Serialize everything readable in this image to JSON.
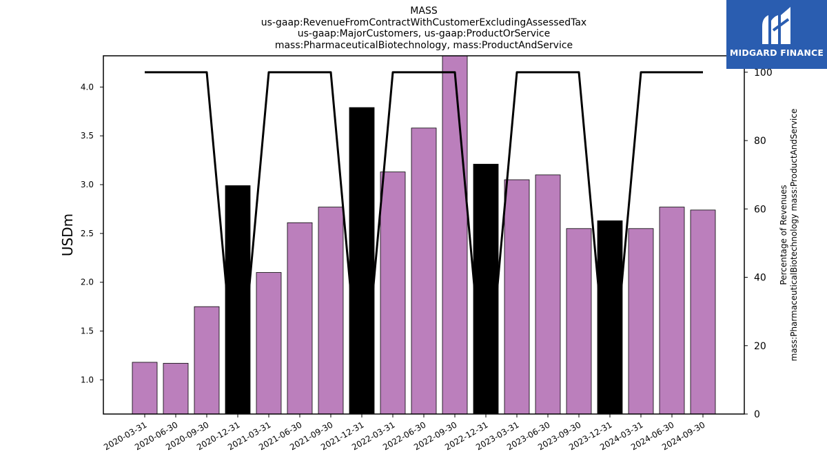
{
  "chart_data": {
    "type": "bar",
    "title_lines": [
      "MASS",
      "us-gaap:RevenueFromContractWithCustomerExcludingAssessedTax",
      "us-gaap:MajorCustomers, us-gaap:ProductOrService",
      "mass:PharmaceuticalBiotechnology, mass:ProductAndService"
    ],
    "ylabel": "USDm",
    "ylabel_right": [
      "Percentage of Revenues",
      "mass:PharmaceuticalBiotechnology mass:ProductAndService"
    ],
    "categories": [
      "2020-03-31",
      "2020-06-30",
      "2020-09-30",
      "2020-12-31",
      "2021-03-31",
      "2021-06-30",
      "2021-09-30",
      "2021-12-31",
      "2022-03-31",
      "2022-06-30",
      "2022-09-30",
      "2022-12-31",
      "2023-03-31",
      "2023-06-30",
      "2023-09-30",
      "2023-12-31",
      "2024-03-31",
      "2024-06-30",
      "2024-09-30"
    ],
    "series": [
      {
        "axis": "left",
        "type": "bar",
        "values": [
          1.18,
          1.17,
          1.75,
          2.99,
          2.1,
          2.61,
          2.77,
          3.79,
          3.13,
          3.58,
          4.33,
          3.21,
          3.05,
          3.1,
          2.55,
          2.63,
          2.55,
          2.77,
          2.74
        ],
        "colors": [
          "#bb7fbc",
          "#bb7fbc",
          "#bb7fbc",
          "#000000",
          "#bb7fbc",
          "#bb7fbc",
          "#bb7fbc",
          "#000000",
          "#bb7fbc",
          "#bb7fbc",
          "#bb7fbc",
          "#000000",
          "#bb7fbc",
          "#bb7fbc",
          "#bb7fbc",
          "#000000",
          "#bb7fbc",
          "#bb7fbc",
          "#bb7fbc"
        ]
      },
      {
        "axis": "right",
        "type": "line",
        "color": "#000000",
        "values": [
          100,
          100,
          100,
          null,
          100,
          100,
          100,
          null,
          100,
          100,
          100,
          null,
          100,
          100,
          100,
          null,
          100,
          100,
          100
        ]
      }
    ],
    "ylim": [
      0.65,
      4.32
    ],
    "yticks": [
      1.0,
      1.5,
      2.0,
      2.5,
      3.0,
      3.5,
      4.0
    ],
    "ylim_right": [
      0,
      104.8
    ],
    "yticks_right": [
      0,
      20,
      40,
      60,
      80,
      100
    ],
    "grid": false,
    "legend": "none"
  },
  "logo": {
    "text": "MIDGARD FINANCE",
    "background": "#2a5db0",
    "icon": "m-logo-icon"
  }
}
